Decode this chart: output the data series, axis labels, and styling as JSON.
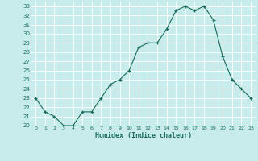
{
  "x": [
    0,
    1,
    2,
    3,
    4,
    5,
    6,
    7,
    8,
    9,
    10,
    11,
    12,
    13,
    14,
    15,
    16,
    17,
    18,
    19,
    20,
    21,
    22,
    23
  ],
  "y": [
    23.0,
    21.5,
    21.0,
    20.0,
    20.0,
    21.5,
    21.5,
    23.0,
    24.5,
    25.0,
    26.0,
    28.5,
    29.0,
    29.0,
    30.5,
    32.5,
    33.0,
    32.5,
    33.0,
    31.5,
    27.5,
    25.0,
    24.0,
    23.0
  ],
  "xlabel": "Humidex (Indice chaleur)",
  "ylim": [
    20,
    33
  ],
  "xlim": [
    -0.5,
    23.5
  ],
  "yticks": [
    20,
    21,
    22,
    23,
    24,
    25,
    26,
    27,
    28,
    29,
    30,
    31,
    32,
    33
  ],
  "xticks": [
    0,
    1,
    2,
    3,
    4,
    5,
    6,
    7,
    8,
    9,
    10,
    11,
    12,
    13,
    14,
    15,
    16,
    17,
    18,
    19,
    20,
    21,
    22,
    23
  ],
  "line_color": "#1a6b5a",
  "bg_color": "#c8ecec",
  "grid_color": "#b0d8d8",
  "xlabel_color": "#1a6b5a",
  "tick_color": "#1a6b5a",
  "spine_color": "#1a6b5a"
}
